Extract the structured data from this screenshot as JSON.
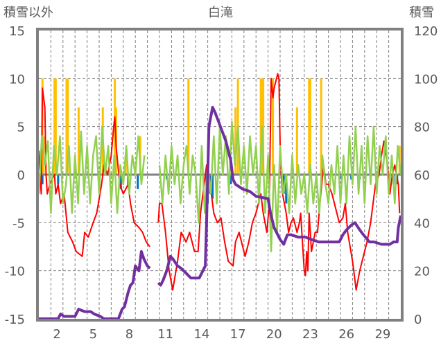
{
  "chart_data": {
    "type": "line",
    "title": "白滝",
    "ylabel_left": "積雪以外",
    "ylabel_right": "積雪",
    "xlim": [
      1,
      31
    ],
    "ylim_left": [
      -15,
      15
    ],
    "ylim_right": [
      0,
      120
    ],
    "yticks_left": [
      "15",
      "10",
      "5",
      "0",
      "-5",
      "-10",
      "-15"
    ],
    "yticks_right": [
      "120",
      "100",
      "80",
      "60",
      "40",
      "20",
      "0"
    ],
    "xticks": [
      2,
      5,
      8,
      11,
      14,
      17,
      20,
      23,
      26,
      29
    ],
    "grid": true,
    "colors": {
      "temp": "#ff0000",
      "wind": "#92d050",
      "precip": "#ffc000",
      "negbar": "#0070c0",
      "snow": "#7030a0",
      "frame": "#808080"
    },
    "series": [
      {
        "name": "temperature",
        "axis": "left",
        "color": "#ff0000",
        "points": [
          [
            1.0,
            2.5
          ],
          [
            1.1,
            0
          ],
          [
            1.2,
            -2
          ],
          [
            1.3,
            9
          ],
          [
            1.5,
            7
          ],
          [
            1.6,
            0
          ],
          [
            1.7,
            -2
          ],
          [
            1.9,
            -1
          ],
          [
            2.3,
            0
          ],
          [
            2.4,
            -2
          ],
          [
            2.6,
            -1
          ],
          [
            2.8,
            -3
          ],
          [
            3.1,
            -2
          ],
          [
            3.4,
            -6
          ],
          [
            3.8,
            -7
          ],
          [
            4.1,
            -8
          ],
          [
            4.6,
            -8.5
          ],
          [
            4.8,
            -6
          ],
          [
            5.1,
            -6.5
          ],
          [
            5.5,
            -5
          ],
          [
            5.8,
            -4
          ],
          [
            6.2,
            -1
          ],
          [
            6.4,
            1
          ],
          [
            6.7,
            0
          ],
          [
            7.0,
            2
          ],
          [
            7.2,
            5
          ],
          [
            7.3,
            6
          ],
          [
            7.4,
            3
          ],
          [
            7.7,
            -1
          ],
          [
            8.0,
            -2
          ],
          [
            8.4,
            -1
          ],
          [
            8.6,
            -3
          ],
          [
            8.9,
            -5
          ],
          [
            9.3,
            -5.5
          ],
          [
            9.6,
            -6
          ],
          [
            9.9,
            -7
          ],
          [
            10.2,
            -7.5
          ],
          null,
          [
            10.9,
            -5
          ],
          [
            11.0,
            -3
          ],
          [
            11.2,
            -3
          ],
          [
            11.5,
            -6
          ],
          [
            11.8,
            -10
          ],
          [
            12.1,
            -12
          ],
          [
            12.5,
            -9
          ],
          [
            12.8,
            -6
          ],
          [
            13.2,
            -7
          ],
          [
            13.5,
            -6
          ],
          [
            13.9,
            -8
          ],
          [
            14.2,
            -8
          ],
          [
            14.4,
            -4
          ],
          [
            14.7,
            -1
          ],
          [
            14.9,
            1
          ],
          [
            15.1,
            0
          ],
          [
            15.5,
            -4
          ],
          [
            15.8,
            -5
          ],
          [
            16.1,
            -4.5
          ],
          [
            16.4,
            -7
          ],
          [
            16.7,
            -9
          ],
          [
            17.1,
            -9.5
          ],
          [
            17.3,
            -7
          ],
          [
            17.6,
            -6
          ],
          [
            17.8,
            -7
          ],
          [
            18.1,
            -8.5
          ],
          [
            18.4,
            -7
          ],
          [
            18.7,
            -5
          ],
          [
            19.0,
            -4
          ],
          [
            19.4,
            -2
          ],
          [
            19.6,
            -4
          ],
          [
            19.9,
            -6
          ],
          [
            20.1,
            -3
          ],
          [
            20.2,
            5
          ],
          [
            20.25,
            10
          ],
          [
            20.4,
            8
          ],
          [
            20.5,
            9
          ],
          [
            20.8,
            10.5
          ],
          [
            20.9,
            10
          ],
          [
            21.0,
            3
          ],
          [
            21.1,
            0
          ],
          [
            21.2,
            -2
          ],
          [
            21.5,
            -4
          ],
          [
            21.7,
            -6
          ],
          [
            21.9,
            -5
          ],
          [
            22.1,
            -4.5
          ],
          [
            22.4,
            -6
          ],
          [
            22.6,
            -5
          ],
          [
            22.7,
            -4
          ],
          [
            22.8,
            -6
          ],
          [
            23.0,
            -10
          ],
          [
            23.1,
            -10.5
          ],
          [
            23.2,
            -8
          ],
          [
            23.3,
            -10
          ],
          [
            23.4,
            -4
          ],
          [
            23.5,
            -6
          ],
          [
            23.6,
            -8
          ],
          [
            23.9,
            -6
          ],
          [
            24.1,
            -6
          ],
          [
            24.3,
            -3
          ],
          [
            24.6,
            1
          ],
          [
            24.8,
            -1
          ],
          [
            25.0,
            -1
          ],
          [
            25.3,
            -2
          ],
          [
            25.5,
            -3
          ],
          [
            25.7,
            -4
          ],
          [
            25.9,
            -5
          ],
          [
            26.2,
            -4.5
          ],
          [
            26.4,
            -3
          ],
          [
            26.6,
            -6
          ],
          [
            27.0,
            -9
          ],
          [
            27.2,
            -11
          ],
          [
            27.3,
            -12
          ],
          [
            27.6,
            -10
          ],
          [
            27.8,
            -9
          ],
          [
            28.0,
            -8
          ],
          [
            28.2,
            -7
          ],
          [
            28.5,
            -5
          ],
          [
            28.7,
            -3
          ],
          [
            28.9,
            -1
          ],
          [
            29.2,
            0
          ],
          [
            29.4,
            2
          ],
          [
            29.6,
            3.5
          ],
          [
            29.9,
            1
          ],
          [
            30.1,
            -2
          ],
          [
            30.3,
            0
          ],
          [
            30.5,
            1
          ],
          [
            30.8,
            -1
          ],
          [
            30.9,
            -4
          ]
        ]
      },
      {
        "name": "wind",
        "axis": "left",
        "color": "#92d050",
        "start": 1,
        "step": 0.25,
        "values": [
          -2,
          4,
          1,
          3.5,
          -4,
          3,
          0,
          4,
          -3,
          -1,
          3,
          -4,
          2,
          -3,
          4.5,
          -2,
          3,
          -3,
          2,
          4,
          -2,
          5,
          0,
          3,
          -3,
          2,
          -4,
          1,
          -1,
          3,
          -2,
          2,
          0,
          4,
          -1,
          2,
          null,
          null,
          null,
          null,
          1,
          -3,
          2,
          -2,
          3,
          -1,
          2,
          -3,
          1,
          3,
          -2,
          2,
          0,
          -5,
          3,
          -4,
          1,
          -2,
          4,
          -3,
          5,
          0,
          4,
          -2,
          5.5,
          1,
          5,
          -1,
          3,
          -2,
          4,
          0,
          3,
          -3,
          5,
          -4,
          2,
          -8,
          1,
          -6,
          3,
          -2,
          0,
          -4,
          2,
          -3,
          1,
          -2,
          0,
          -4,
          1,
          -3,
          0,
          -4,
          2,
          -1,
          -3,
          1,
          -2,
          3,
          -3,
          2,
          -3,
          4,
          -1,
          5,
          -2,
          3,
          -3,
          4,
          -1,
          5,
          -2,
          3,
          0,
          4,
          -2,
          2,
          -3,
          3,
          0
        ]
      },
      {
        "name": "precipitation",
        "axis": "left",
        "type": "bar",
        "color": "#ffc000",
        "points": [
          [
            1.3,
            10
          ],
          [
            1.4,
            4
          ],
          [
            2.3,
            10
          ],
          [
            2.4,
            10
          ],
          [
            3.3,
            10
          ],
          [
            3.4,
            10
          ],
          [
            4.3,
            7
          ],
          [
            6.3,
            7
          ],
          [
            7.3,
            10
          ],
          [
            7.4,
            7
          ],
          [
            8.2,
            2
          ],
          [
            9.4,
            4
          ],
          [
            13.4,
            10
          ],
          [
            17.3,
            7
          ],
          [
            17.5,
            10
          ],
          [
            19.4,
            10
          ],
          [
            19.5,
            10
          ],
          [
            19.6,
            10
          ],
          [
            20.4,
            10
          ],
          [
            22.4,
            7
          ],
          [
            23.4,
            10
          ],
          [
            23.5,
            10
          ],
          [
            24.4,
            10
          ],
          [
            30.9,
            3
          ]
        ]
      },
      {
        "name": "negative",
        "axis": "left",
        "type": "bar",
        "color": "#0070c0",
        "points": [
          [
            1.3,
            -1
          ],
          [
            2.6,
            -1
          ],
          [
            7.8,
            -1.5
          ],
          [
            8.4,
            -1
          ],
          [
            9.2,
            -1.5
          ],
          [
            11.6,
            -0.5
          ],
          [
            14.9,
            -2.5
          ],
          [
            15.0,
            -3
          ],
          [
            15.2,
            -2
          ],
          [
            15.4,
            -2.5
          ],
          [
            16.9,
            -1
          ],
          [
            21.3,
            -2
          ],
          [
            21.5,
            -3
          ],
          [
            26.1,
            -0.5
          ],
          [
            26.9,
            -0.5
          ],
          [
            27.6,
            -0.5
          ],
          [
            30.4,
            -1
          ],
          [
            30.7,
            -1
          ]
        ]
      },
      {
        "name": "snow_depth",
        "axis": "right",
        "color": "#7030a0",
        "points": [
          [
            1.0,
            0
          ],
          [
            2.6,
            0
          ],
          [
            2.8,
            2
          ],
          [
            3.1,
            1
          ],
          [
            4.0,
            1
          ],
          [
            4.3,
            4
          ],
          [
            4.8,
            3
          ],
          [
            5.3,
            3
          ],
          [
            5.6,
            2
          ],
          [
            6.1,
            1
          ],
          [
            6.4,
            0
          ],
          [
            7.6,
            0
          ],
          [
            7.9,
            4
          ],
          [
            8.1,
            5
          ],
          [
            8.4,
            11
          ],
          [
            8.6,
            14
          ],
          [
            8.8,
            15
          ],
          [
            9.0,
            22
          ],
          [
            9.3,
            20
          ],
          [
            9.5,
            28
          ],
          [
            9.7,
            25
          ],
          [
            10.0,
            22
          ],
          [
            10.2,
            21
          ],
          null,
          [
            10.9,
            15
          ],
          [
            11.1,
            14
          ],
          [
            11.3,
            16
          ],
          [
            11.6,
            20
          ],
          [
            11.9,
            26
          ],
          [
            12.1,
            25
          ],
          [
            12.5,
            22
          ],
          [
            12.8,
            21
          ],
          [
            13.2,
            19
          ],
          [
            13.6,
            17
          ],
          [
            14.3,
            17
          ],
          [
            14.8,
            22
          ],
          [
            14.9,
            40
          ],
          [
            15.1,
            80
          ],
          [
            15.4,
            88
          ],
          [
            15.6,
            86
          ],
          [
            15.9,
            82
          ],
          [
            16.2,
            78
          ],
          [
            16.5,
            74
          ],
          [
            16.9,
            66
          ],
          [
            17.1,
            58
          ],
          [
            17.3,
            56
          ],
          [
            17.9,
            54
          ],
          [
            18.5,
            53
          ],
          [
            19.0,
            51
          ],
          [
            20.0,
            50
          ],
          [
            20.2,
            44
          ],
          [
            20.5,
            38
          ],
          [
            21.0,
            33
          ],
          [
            21.3,
            31
          ],
          [
            21.6,
            35
          ],
          [
            21.9,
            35
          ],
          [
            22.5,
            34
          ],
          [
            23.1,
            34
          ],
          [
            23.6,
            33
          ],
          [
            24.2,
            32
          ],
          [
            24.8,
            32
          ],
          [
            25.9,
            32
          ],
          [
            26.2,
            35
          ],
          [
            26.5,
            37
          ],
          [
            26.9,
            39
          ],
          [
            27.2,
            40
          ],
          [
            27.6,
            37
          ],
          [
            27.9,
            35
          ],
          [
            28.4,
            32
          ],
          [
            28.8,
            32
          ],
          [
            29.4,
            31
          ],
          [
            30.1,
            31
          ],
          [
            30.4,
            32
          ],
          [
            30.7,
            32
          ],
          [
            30.8,
            38
          ],
          [
            31.0,
            43
          ]
        ]
      }
    ]
  }
}
